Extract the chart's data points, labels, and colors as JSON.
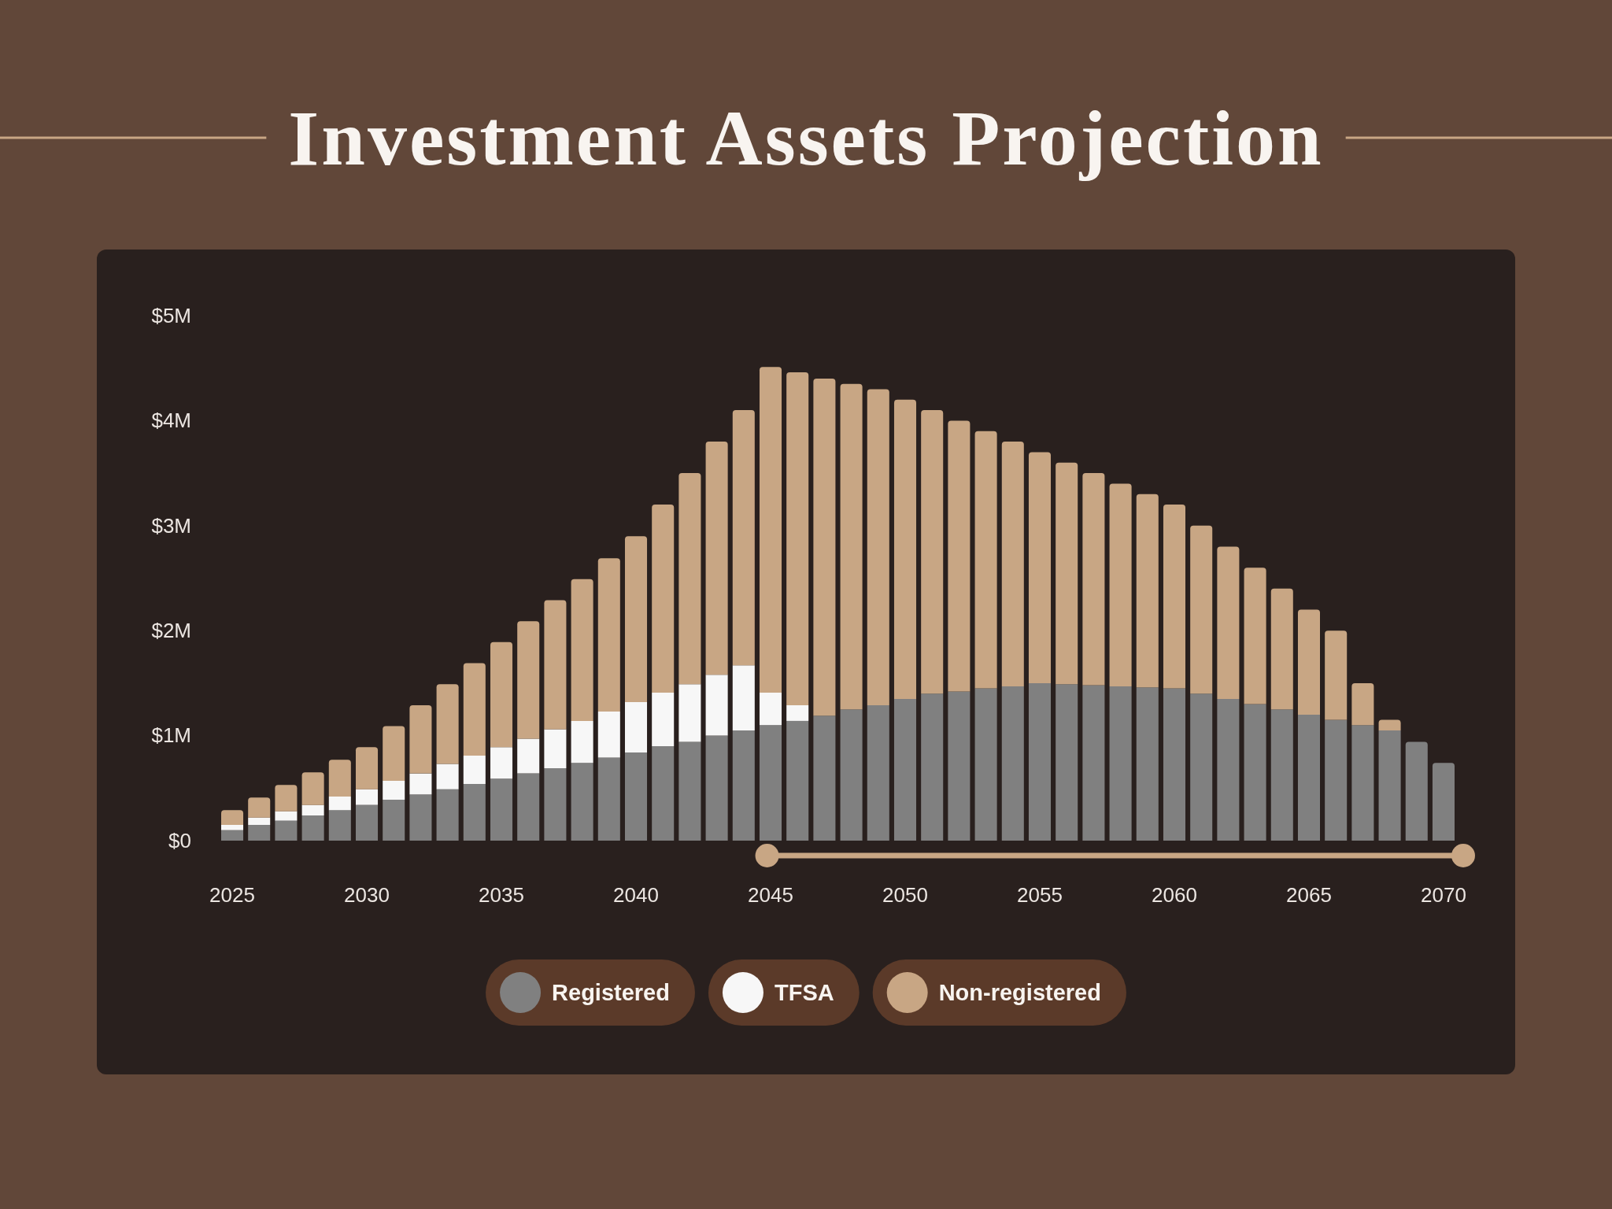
{
  "chart_data": {
    "type": "bar",
    "title": "Investment Assets Projection",
    "stacked": true,
    "legend": "bottom",
    "categories": [
      "2025",
      null,
      null,
      null,
      null,
      "2030",
      null,
      null,
      null,
      null,
      "2035",
      null,
      null,
      null,
      null,
      "2040",
      null,
      null,
      null,
      null,
      "2045",
      null,
      null,
      null,
      null,
      "2050",
      null,
      null,
      null,
      null,
      "2055",
      null,
      null,
      null,
      null,
      "2060",
      null,
      null,
      null,
      null,
      "2065",
      null,
      null,
      null,
      null,
      "2070"
    ],
    "ylim": [
      0,
      5
    ],
    "yticks": [
      {
        "value": 0,
        "label": "$0"
      },
      {
        "value": 1,
        "label": "$1M"
      },
      {
        "value": 2,
        "label": "$2M"
      },
      {
        "value": 3,
        "label": "$3M"
      },
      {
        "value": 4,
        "label": "$4M"
      },
      {
        "value": 5,
        "label": "$5M"
      }
    ],
    "series": [
      {
        "name": "Registered",
        "color": "#808080",
        "values": [
          0.1,
          0.15,
          0.19,
          0.24,
          0.29,
          0.34,
          0.39,
          0.44,
          0.49,
          0.54,
          0.59,
          0.64,
          0.69,
          0.74,
          0.79,
          0.84,
          0.9,
          0.94,
          1.0,
          1.05,
          1.1,
          1.14,
          1.19,
          1.25,
          1.29,
          1.35,
          1.4,
          1.42,
          1.45,
          1.47,
          1.5,
          1.49,
          1.48,
          1.47,
          1.46,
          1.45,
          1.4,
          1.35,
          1.3,
          1.25,
          1.2,
          1.15,
          1.1,
          1.05,
          0.94,
          0.74
        ]
      },
      {
        "name": "TFSA",
        "color": "#f7f7f7",
        "values": [
          0.05,
          0.07,
          0.09,
          0.1,
          0.13,
          0.15,
          0.18,
          0.2,
          0.24,
          0.27,
          0.3,
          0.33,
          0.37,
          0.4,
          0.44,
          0.48,
          0.51,
          0.55,
          0.58,
          0.62,
          0.31,
          0.15,
          null,
          null,
          null,
          null,
          null,
          null,
          null,
          null,
          null,
          null,
          null,
          null,
          null,
          null,
          null,
          null,
          null,
          null,
          null,
          null,
          null,
          null,
          null,
          null
        ]
      },
      {
        "name": "Non-registered",
        "color": "#c8a684",
        "values": [
          0.14,
          0.19,
          0.25,
          0.31,
          0.35,
          0.4,
          0.52,
          0.65,
          0.76,
          0.88,
          1.0,
          1.12,
          1.23,
          1.35,
          1.46,
          1.58,
          1.79,
          2.01,
          2.22,
          2.43,
          3.1,
          3.17,
          3.21,
          3.1,
          3.01,
          2.85,
          2.7,
          2.58,
          2.45,
          2.33,
          2.2,
          2.11,
          2.02,
          1.93,
          1.84,
          1.75,
          1.6,
          1.45,
          1.3,
          1.15,
          1.0,
          0.85,
          0.4,
          0.1,
          null,
          null
        ]
      }
    ]
  }
}
